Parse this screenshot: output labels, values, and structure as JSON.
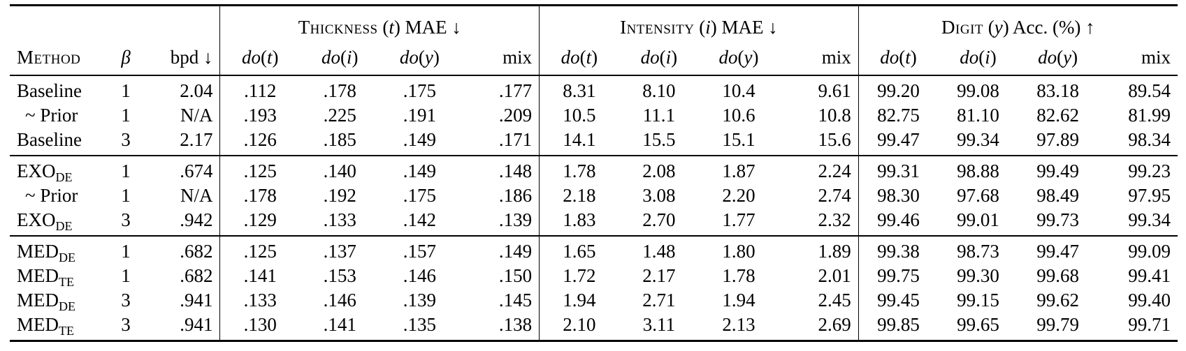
{
  "group_headers": {
    "thickness": "Thickness (t) MAE ↓",
    "intensity": "Intensity (i) MAE ↓",
    "digit": "Digit (y) Acc. (%) ↑"
  },
  "columns": {
    "method": "Method",
    "beta": "β",
    "bpd": "bpd ↓",
    "sub_cols": [
      "do(t)",
      "do(i)",
      "do(y)",
      "mix"
    ]
  },
  "blocks": [
    [
      {
        "method": "Baseline",
        "sub": "",
        "beta": "1",
        "bpd": "2.04",
        "thickness": [
          ".112",
          ".178",
          ".175",
          ".177"
        ],
        "intensity": [
          "8.31",
          "8.10",
          "10.4",
          "9.61"
        ],
        "digit": [
          "99.20",
          "99.08",
          "83.18",
          "89.54"
        ]
      },
      {
        "method": "~ Prior",
        "sub": "",
        "beta": "1",
        "bpd": "N/A",
        "thickness": [
          ".193",
          ".225",
          ".191",
          ".209"
        ],
        "intensity": [
          "10.5",
          "11.1",
          "10.6",
          "10.8"
        ],
        "digit": [
          "82.75",
          "81.10",
          "82.62",
          "81.99"
        ]
      },
      {
        "method": "Baseline",
        "sub": "",
        "beta": "3",
        "bpd": "2.17",
        "thickness": [
          ".126",
          ".185",
          ".149",
          ".171"
        ],
        "intensity": [
          "14.1",
          "15.5",
          "15.1",
          "15.6"
        ],
        "digit": [
          "99.47",
          "99.34",
          "97.89",
          "98.34"
        ]
      }
    ],
    [
      {
        "method": "EXO",
        "sub": "DE",
        "beta": "1",
        "bpd": ".674",
        "thickness": [
          ".125",
          ".140",
          ".149",
          ".148"
        ],
        "intensity": [
          "1.78",
          "2.08",
          "1.87",
          "2.24"
        ],
        "digit": [
          "99.31",
          "98.88",
          "99.49",
          "99.23"
        ]
      },
      {
        "method": "~ Prior",
        "sub": "",
        "beta": "1",
        "bpd": "N/A",
        "thickness": [
          ".178",
          ".192",
          ".175",
          ".186"
        ],
        "intensity": [
          "2.18",
          "3.08",
          "2.20",
          "2.74"
        ],
        "digit": [
          "98.30",
          "97.68",
          "98.49",
          "97.95"
        ]
      },
      {
        "method": "EXO",
        "sub": "DE",
        "beta": "3",
        "bpd": ".942",
        "thickness": [
          ".129",
          ".133",
          ".142",
          ".139"
        ],
        "intensity": [
          "1.83",
          "2.70",
          "1.77",
          "2.32"
        ],
        "digit": [
          "99.46",
          "99.01",
          "99.73",
          "99.34"
        ]
      }
    ],
    [
      {
        "method": "MED",
        "sub": "DE",
        "beta": "1",
        "bpd": ".682",
        "thickness": [
          ".125",
          ".137",
          ".157",
          ".149"
        ],
        "intensity": [
          "1.65",
          "1.48",
          "1.80",
          "1.89"
        ],
        "digit": [
          "99.38",
          "98.73",
          "99.47",
          "99.09"
        ]
      },
      {
        "method": "MED",
        "sub": "TE",
        "beta": "1",
        "bpd": ".682",
        "thickness": [
          ".141",
          ".153",
          ".146",
          ".150"
        ],
        "intensity": [
          "1.72",
          "2.17",
          "1.78",
          "2.01"
        ],
        "digit": [
          "99.75",
          "99.30",
          "99.68",
          "99.41"
        ]
      },
      {
        "method": "MED",
        "sub": "DE",
        "beta": "3",
        "bpd": ".941",
        "thickness": [
          ".133",
          ".146",
          ".139",
          ".145"
        ],
        "intensity": [
          "1.94",
          "2.71",
          "1.94",
          "2.45"
        ],
        "digit": [
          "99.45",
          "99.15",
          "99.62",
          "99.40"
        ]
      },
      {
        "method": "MED",
        "sub": "TE",
        "beta": "3",
        "bpd": ".941",
        "thickness": [
          ".130",
          ".141",
          ".135",
          ".138"
        ],
        "intensity": [
          "2.10",
          "3.11",
          "2.13",
          "2.69"
        ],
        "digit": [
          "99.85",
          "99.65",
          "99.79",
          "99.71"
        ]
      }
    ]
  ]
}
